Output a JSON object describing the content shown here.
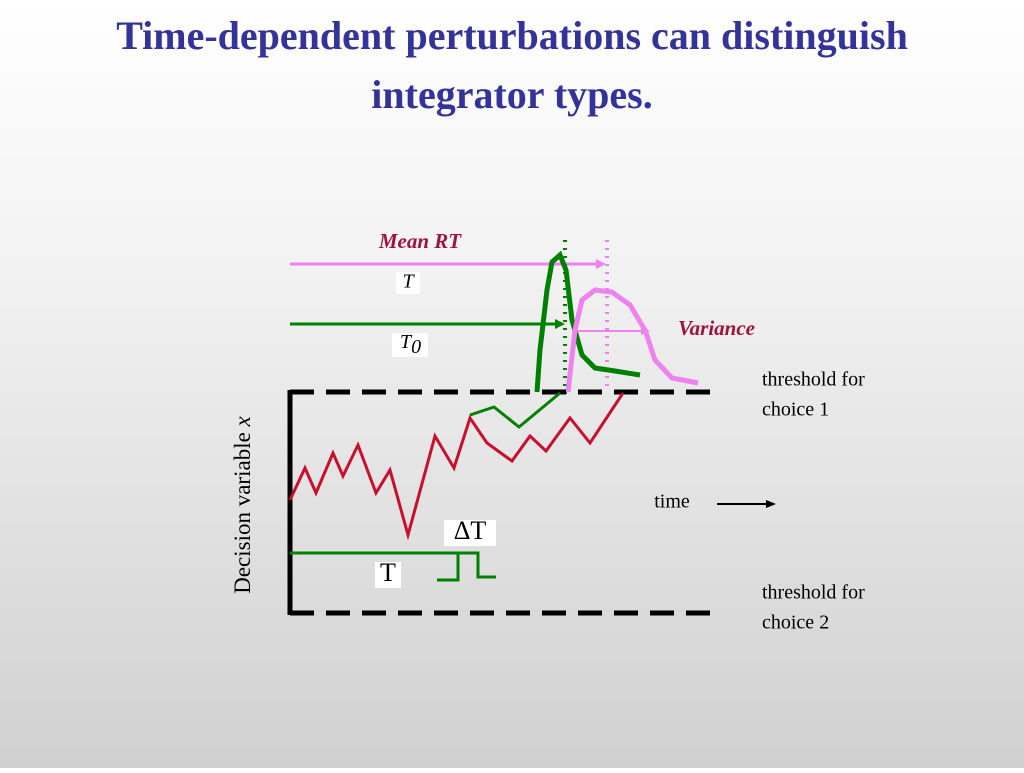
{
  "title_lines": [
    "Time-dependent perturbations can distinguish",
    "integrator types."
  ],
  "labels": {
    "mean_rt": "Mean RT",
    "tau": "T",
    "tau0": {
      "main": "T",
      "sub": "0"
    },
    "variance": "Variance",
    "threshold1": [
      "threshold for",
      "choice 1"
    ],
    "time": "time",
    "delta_t": "ΔT",
    "t": "T",
    "threshold2": [
      "threshold for",
      "choice 2"
    ],
    "y_axis": {
      "text": "Decision variable ",
      "var": "x"
    }
  }
}
